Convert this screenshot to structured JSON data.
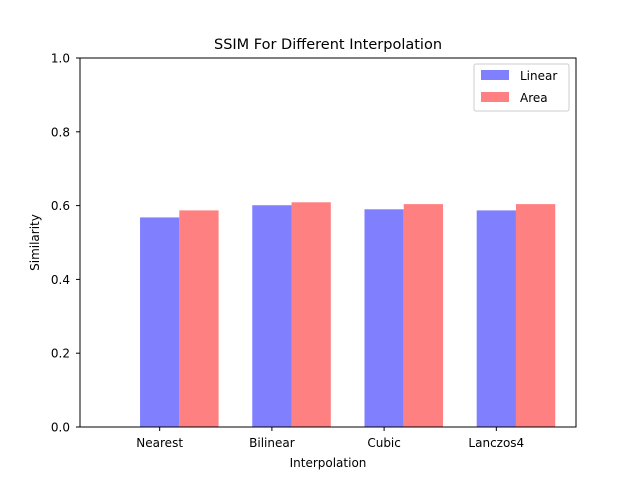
{
  "chart_data": {
    "type": "bar",
    "title": "SSIM For Different Interpolation",
    "xlabel": "Interpolation",
    "ylabel": "Similarity",
    "categories": [
      "Nearest",
      "Bilinear",
      "Cubic",
      "Lanczos4"
    ],
    "ylim": [
      0,
      1.0
    ],
    "yticks": [
      "0.0",
      "0.2",
      "0.4",
      "0.6",
      "0.8",
      "1.0"
    ],
    "series": [
      {
        "name": "Linear",
        "color": "#8080ff",
        "values": [
          0.568,
          0.601,
          0.59,
          0.587
        ]
      },
      {
        "name": "Area",
        "color": "#ff8080",
        "values": [
          0.587,
          0.609,
          0.604,
          0.604
        ]
      }
    ],
    "legend_position": "top-right",
    "grid": false
  }
}
